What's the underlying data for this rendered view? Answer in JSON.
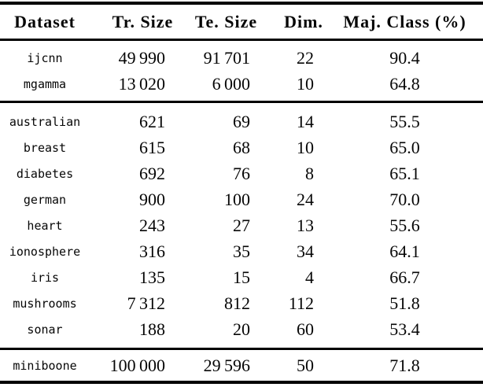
{
  "page": {
    "background": "#ffffff",
    "text_color": "#060606",
    "rule_color": "#000000"
  },
  "table": {
    "columns": [
      {
        "key": "dataset",
        "label": "Dataset"
      },
      {
        "key": "tr_size",
        "label": "Tr. Size"
      },
      {
        "key": "te_size",
        "label": "Te. Size"
      },
      {
        "key": "dim",
        "label": "Dim."
      },
      {
        "key": "maj_class",
        "label": "Maj. Class (%)"
      }
    ],
    "sections": [
      {
        "name": "medium-datasets",
        "rows": [
          {
            "dataset": "ijcnn",
            "tr_size": "49 990",
            "te_size": "91 701",
            "dim": "22",
            "maj_class": "90.4"
          },
          {
            "dataset": "mgamma",
            "tr_size": "13 020",
            "te_size": "6 000",
            "dim": "10",
            "maj_class": "64.8"
          }
        ]
      },
      {
        "name": "small-datasets",
        "rows": [
          {
            "dataset": "australian",
            "tr_size": "621",
            "te_size": "69",
            "dim": "14",
            "maj_class": "55.5"
          },
          {
            "dataset": "breast",
            "tr_size": "615",
            "te_size": "68",
            "dim": "10",
            "maj_class": "65.0"
          },
          {
            "dataset": "diabetes",
            "tr_size": "692",
            "te_size": "76",
            "dim": "8",
            "maj_class": "65.1"
          },
          {
            "dataset": "german",
            "tr_size": "900",
            "te_size": "100",
            "dim": "24",
            "maj_class": "70.0"
          },
          {
            "dataset": "heart",
            "tr_size": "243",
            "te_size": "27",
            "dim": "13",
            "maj_class": "55.6"
          },
          {
            "dataset": "ionosphere",
            "tr_size": "316",
            "te_size": "35",
            "dim": "34",
            "maj_class": "64.1"
          },
          {
            "dataset": "iris",
            "tr_size": "135",
            "te_size": "15",
            "dim": "4",
            "maj_class": "66.7"
          },
          {
            "dataset": "mushrooms",
            "tr_size": "7 312",
            "te_size": "812",
            "dim": "112",
            "maj_class": "51.8"
          },
          {
            "dataset": "sonar",
            "tr_size": "188",
            "te_size": "20",
            "dim": "60",
            "maj_class": "53.4"
          }
        ]
      },
      {
        "name": "large-dataset",
        "rows": [
          {
            "dataset": "miniboone",
            "tr_size": "100 000",
            "te_size": "29 596",
            "dim": "50",
            "maj_class": "71.8"
          }
        ]
      }
    ]
  }
}
